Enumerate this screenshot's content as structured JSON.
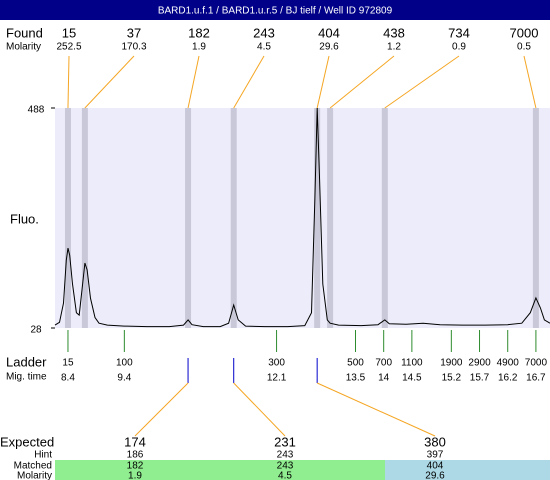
{
  "chart_data": {
    "type": "line",
    "title": "BARD1.u.f.1 / BARD1.u.r.5 / BJ tielf / Well ID 972809",
    "y_label": "Fluo.",
    "ylim": [
      28,
      488
    ],
    "yticks": [
      488,
      28
    ],
    "xlim": [
      8.17,
      16.95
    ],
    "color": "#000000",
    "found": {
      "label": "Found",
      "sizes": [
        15,
        37,
        182,
        243,
        404,
        438,
        734,
        7000
      ],
      "molarity_label": "Molarity",
      "molarity": [
        252.5,
        170.3,
        1.9,
        4.5,
        29.6,
        1.2,
        0.9,
        0.5
      ],
      "times": [
        8.4,
        8.7,
        10.53,
        11.34,
        12.82,
        13.05,
        14.02,
        16.7
      ]
    },
    "ladder": {
      "label": "Ladder",
      "sizes": [
        15,
        100,
        300,
        500,
        700,
        1100,
        1900,
        2900,
        4900,
        7000
      ],
      "mig_time_label": "Mig. time",
      "times": [
        8.4,
        9.4,
        12.1,
        13.5,
        14,
        14.5,
        15.2,
        15.7,
        16.2,
        16.7
      ]
    },
    "expected": {
      "label": "Expected",
      "values": [
        174,
        231,
        380
      ],
      "hint_label": "Hint",
      "hint": [
        186,
        243,
        397
      ],
      "matched_label": "Matched",
      "matched": [
        182,
        243,
        404
      ],
      "molarity_label": "Molarity",
      "molarity": [
        1.9,
        4.5,
        29.6
      ],
      "times": [
        10.53,
        11.34,
        12.82
      ],
      "colors": [
        "#90ee90",
        "#90ee90",
        "#add8e6"
      ]
    },
    "trace": {
      "x": [
        8.17,
        8.25,
        8.32,
        8.37,
        8.4,
        8.43,
        8.48,
        8.55,
        8.6,
        8.65,
        8.7,
        8.74,
        8.8,
        8.88,
        8.95,
        9.1,
        9.4,
        9.8,
        10.2,
        10.45,
        10.53,
        10.6,
        10.8,
        11.1,
        11.25,
        11.34,
        11.42,
        11.55,
        11.9,
        12.3,
        12.6,
        12.72,
        12.78,
        12.82,
        12.86,
        12.92,
        13.0,
        13.05,
        13.2,
        13.6,
        13.9,
        14.02,
        14.1,
        14.4,
        14.7,
        15.0,
        15.4,
        15.8,
        16.2,
        16.45,
        16.6,
        16.7,
        16.78,
        16.85,
        16.95
      ],
      "values": [
        34,
        40,
        80,
        170,
        195,
        180,
        120,
        60,
        55,
        110,
        164,
        150,
        90,
        50,
        38,
        34,
        32,
        31,
        31,
        34,
        45,
        35,
        31,
        31,
        38,
        76,
        45,
        32,
        31,
        31,
        33,
        60,
        300,
        488,
        350,
        120,
        45,
        38,
        34,
        33,
        35,
        45,
        37,
        36,
        38,
        35,
        34,
        34,
        35,
        38,
        60,
        91,
        70,
        45,
        38
      ]
    }
  }
}
